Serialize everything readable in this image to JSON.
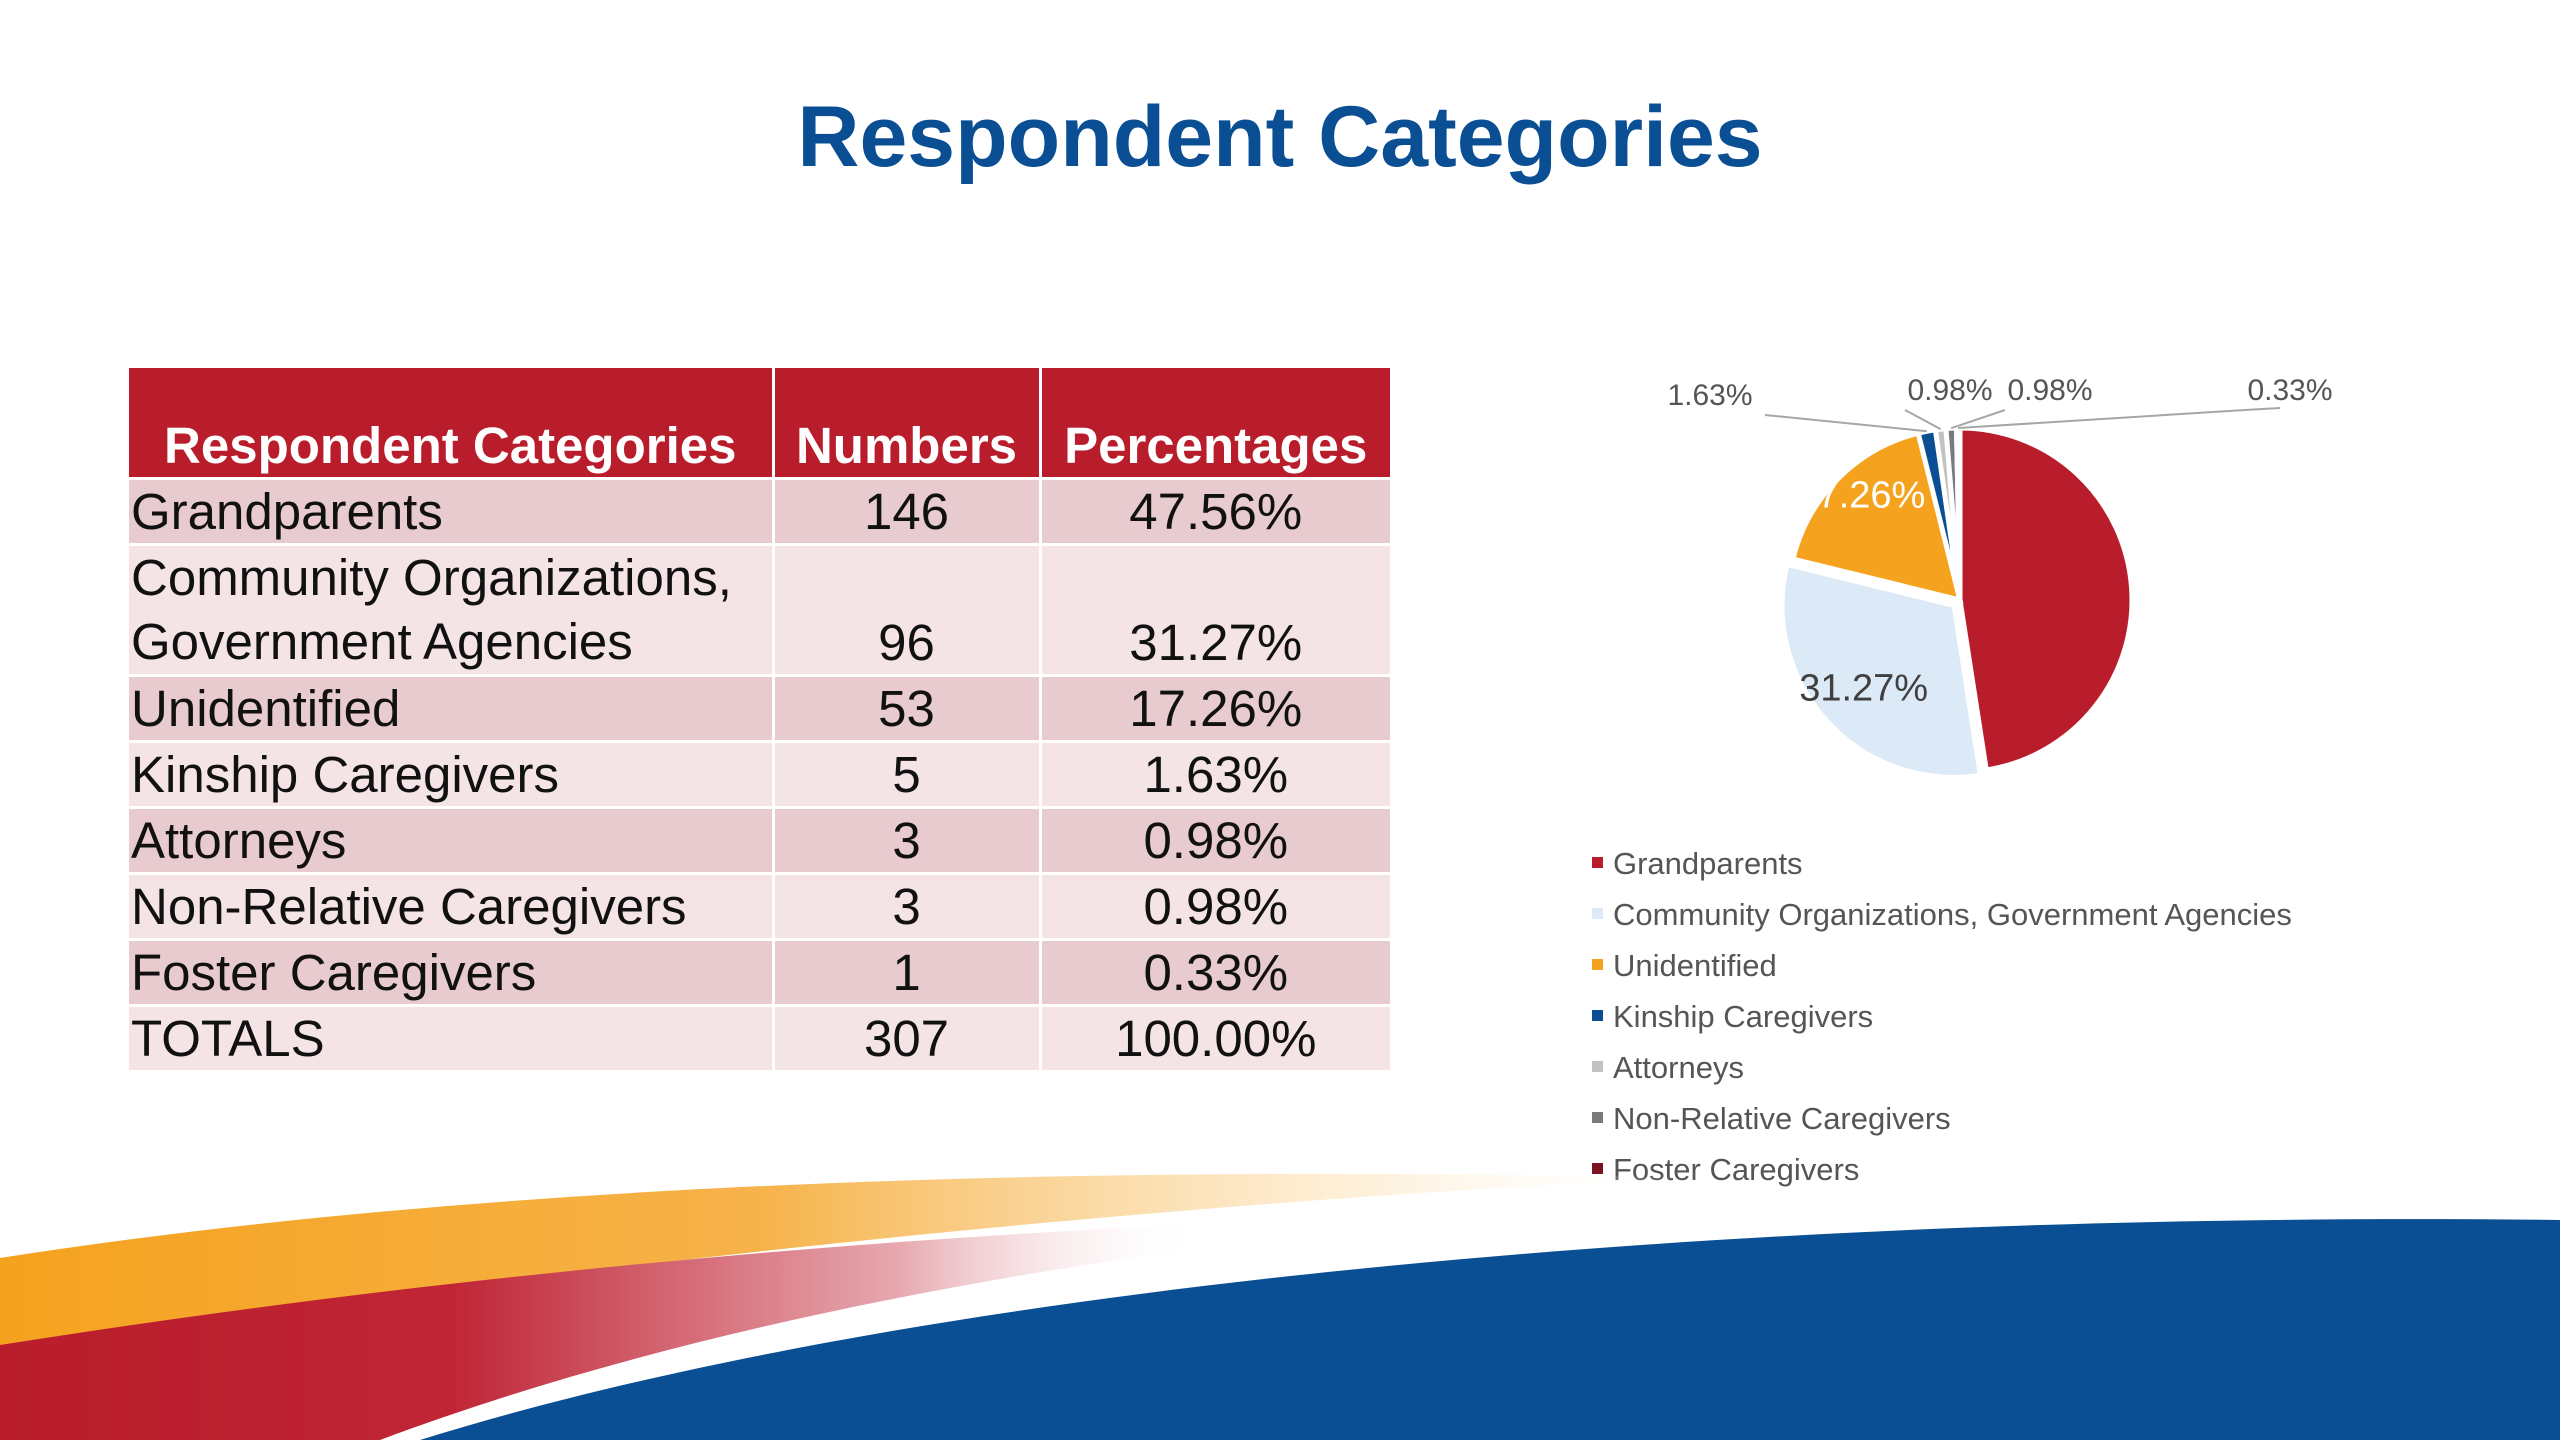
{
  "page": {
    "title": "Respondent Categories"
  },
  "table": {
    "headers": [
      "Respondent Categories",
      "Numbers",
      "Percentages"
    ],
    "rows": [
      {
        "category": "Grandparents",
        "number": "146",
        "percentage": "47.56%"
      },
      {
        "category_line1": "Community Organizations,",
        "category_line2": "Government Agencies",
        "number": "96",
        "percentage": "31.27%"
      },
      {
        "category": "Unidentified",
        "number": "53",
        "percentage": "17.26%"
      },
      {
        "category": "Kinship Caregivers",
        "number": "5",
        "percentage": "1.63%"
      },
      {
        "category": "Attorneys",
        "number": "3",
        "percentage": "0.98%"
      },
      {
        "category": "Non-Relative Caregivers",
        "number": "3",
        "percentage": "0.98%"
      },
      {
        "category": "Foster Caregivers",
        "number": "1",
        "percentage": "0.33%"
      },
      {
        "category": "TOTALS",
        "number": "307",
        "percentage": "100.00%"
      }
    ]
  },
  "colors": {
    "title": "#0a4e93",
    "header_bg": "#b91d2b",
    "row_dark": "#e8cbcf",
    "row_light": "#f5e4e6"
  },
  "chart_data": {
    "type": "pie",
    "legend_position": "bottom",
    "series": [
      {
        "name": "Grandparents",
        "value": 146,
        "label": "",
        "color": "#b91d2b"
      },
      {
        "name": "Community Organizations, Government Agencies",
        "value": 96,
        "label": "31.27%",
        "color": "#dce9f7"
      },
      {
        "name": "Unidentified",
        "value": 53,
        "label": "17.26%",
        "color": "#f5a21e"
      },
      {
        "name": "Kinship Caregivers",
        "value": 5,
        "label": "1.63%",
        "color": "#0a4e93"
      },
      {
        "name": "Attorneys",
        "value": 3,
        "label": "0.98%",
        "color": "#c2c2c2"
      },
      {
        "name": "Non-Relative Caregivers",
        "value": 3,
        "label": "0.98%",
        "color": "#7a7a7a"
      },
      {
        "name": "Foster Caregivers",
        "value": 1,
        "label": "0.33%",
        "color": "#7b1420"
      }
    ]
  }
}
